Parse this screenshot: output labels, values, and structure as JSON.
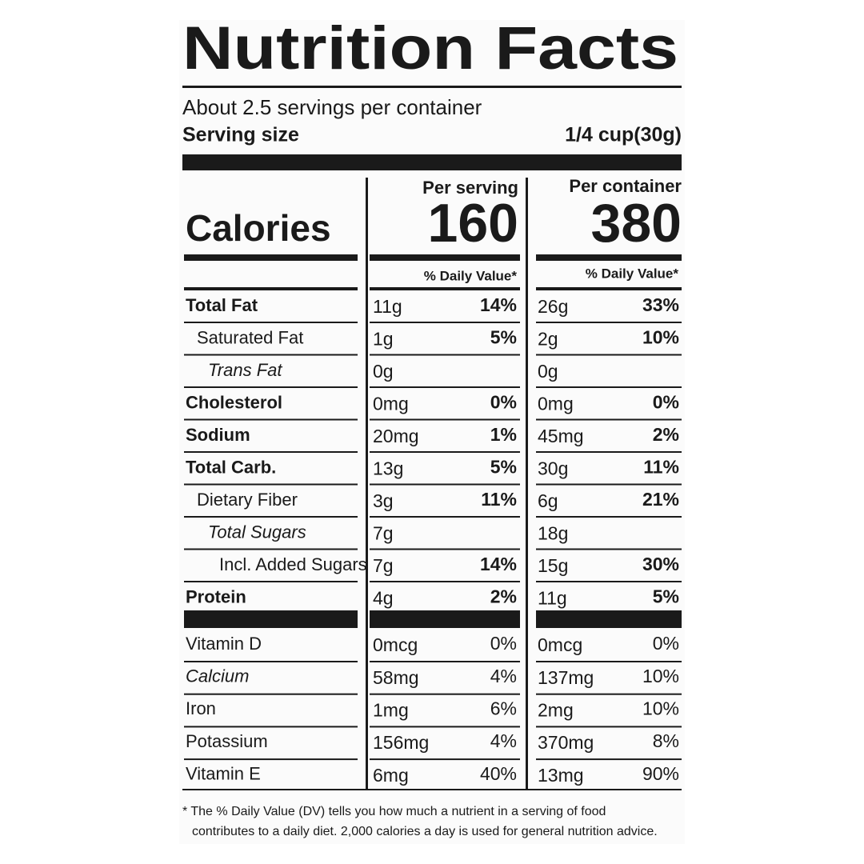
{
  "title": "Nutrition Facts",
  "servings": "About 2.5 servings per container",
  "serving_size": {
    "label": "Serving size",
    "value": "1/4 cup(30g)"
  },
  "columns": [
    "Per serving",
    "Per container"
  ],
  "calories": {
    "label": "Calories",
    "values": [
      "160",
      "380"
    ]
  },
  "dv_header": "% Daily Value*",
  "nutrients": [
    {
      "name": "Total Fat",
      "serving": [
        "11g",
        "14%"
      ],
      "container": [
        "26g",
        "33%"
      ]
    },
    {
      "name": "Saturated Fat",
      "serving": [
        "1g",
        "5%"
      ],
      "container": [
        "2g",
        "10%"
      ]
    },
    {
      "name": "Trans Fat",
      "serving": [
        "0g"
      ],
      "container": [
        "0g"
      ]
    },
    {
      "name": "Cholesterol",
      "serving": [
        "0mg",
        "0%"
      ],
      "container": [
        "0mg",
        "0%"
      ]
    },
    {
      "name": "Sodium",
      "serving": [
        "20mg",
        "1%"
      ],
      "container": [
        "45mg",
        "2%"
      ]
    },
    {
      "name": "Total Carb.",
      "serving": [
        "13g",
        "5%"
      ],
      "container": [
        "30g",
        "11%"
      ]
    },
    {
      "name": "Dietary Fiber",
      "serving": [
        "3g",
        "11%"
      ],
      "container": [
        "6g",
        "21%"
      ]
    },
    {
      "name": "Total Sugars",
      "serving": [
        "7g"
      ],
      "container": [
        "18g"
      ]
    },
    {
      "name": "Incl. Added Sugars",
      "serving": [
        "7g",
        "14%"
      ],
      "container": [
        "15g",
        "30%"
      ]
    },
    {
      "name": "Protein",
      "serving": [
        "4g",
        "2%"
      ],
      "container": [
        "11g",
        "5%"
      ]
    }
  ],
  "vitamins": [
    {
      "name": "Vitamin D",
      "serving": [
        "0mcg",
        "0%"
      ],
      "container": [
        "0mcg",
        "0%"
      ]
    },
    {
      "name": "Calcium",
      "serving": [
        "58mg",
        "4%"
      ],
      "container": [
        "137mg",
        "10%"
      ]
    },
    {
      "name": "Iron",
      "serving": [
        "1mg",
        "6%"
      ],
      "container": [
        "2mg",
        "10%"
      ]
    },
    {
      "name": "Potassium",
      "serving": [
        "156mg",
        "4%"
      ],
      "container": [
        "370mg",
        "8%"
      ]
    },
    {
      "name": "Vitamin E",
      "serving": [
        "6mg",
        "40%"
      ],
      "container": [
        "13mg",
        "90%"
      ]
    }
  ],
  "footnote": [
    "* The % Daily Value (DV) tells you how much a nutrient in a serving of food",
    "contributes to a daily diet. 2,000 calories a day is used for general nutrition advice."
  ]
}
